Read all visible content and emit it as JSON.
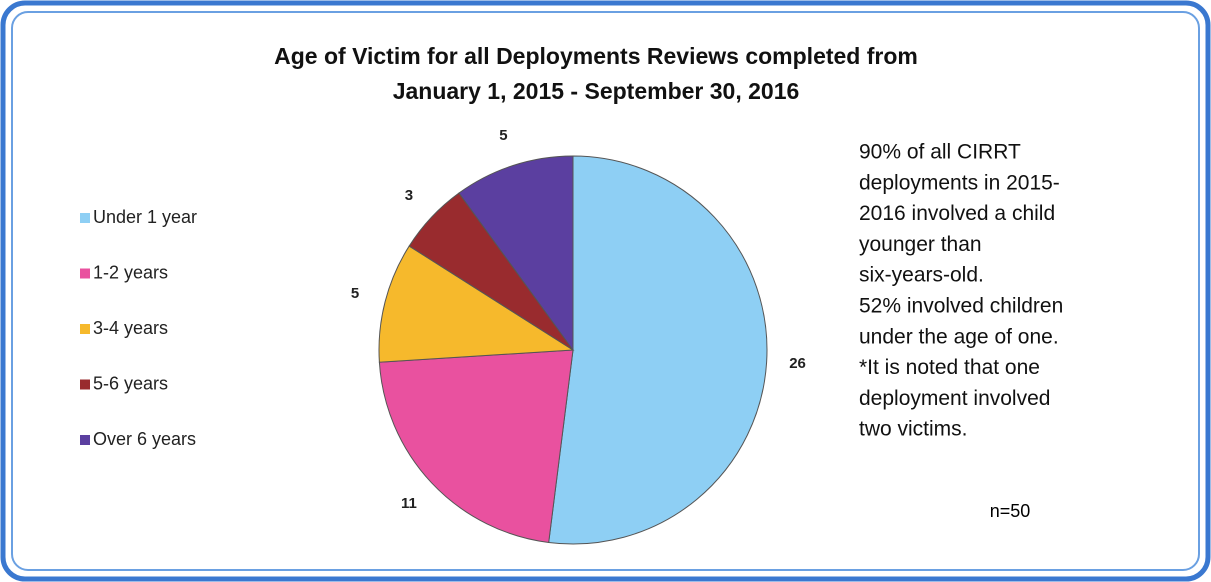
{
  "chart_data": {
    "type": "pie",
    "title": [
      "Age of Victim for all Deployments Reviews completed from",
      "January 1, 2015 - September 30, 2016"
    ],
    "categories": [
      "Under 1 year",
      "1-2 years",
      "3-4 years",
      "5-6 years",
      "Over 6 years"
    ],
    "values": [
      26,
      11,
      5,
      3,
      5
    ],
    "colors": [
      "#8ecff4",
      "#e9519f",
      "#f6b92c",
      "#992b2e",
      "#5b3fa0"
    ],
    "legend": "left",
    "annotation": [
      "90% of all CIRRT",
      "deployments in 2015-",
      "2016 involved a child",
      "younger than",
      "six-years-old.",
      "52% involved children",
      "under the age of one.",
      "*It is noted that one",
      "deployment involved",
      "two victims."
    ],
    "note": "n=50"
  }
}
